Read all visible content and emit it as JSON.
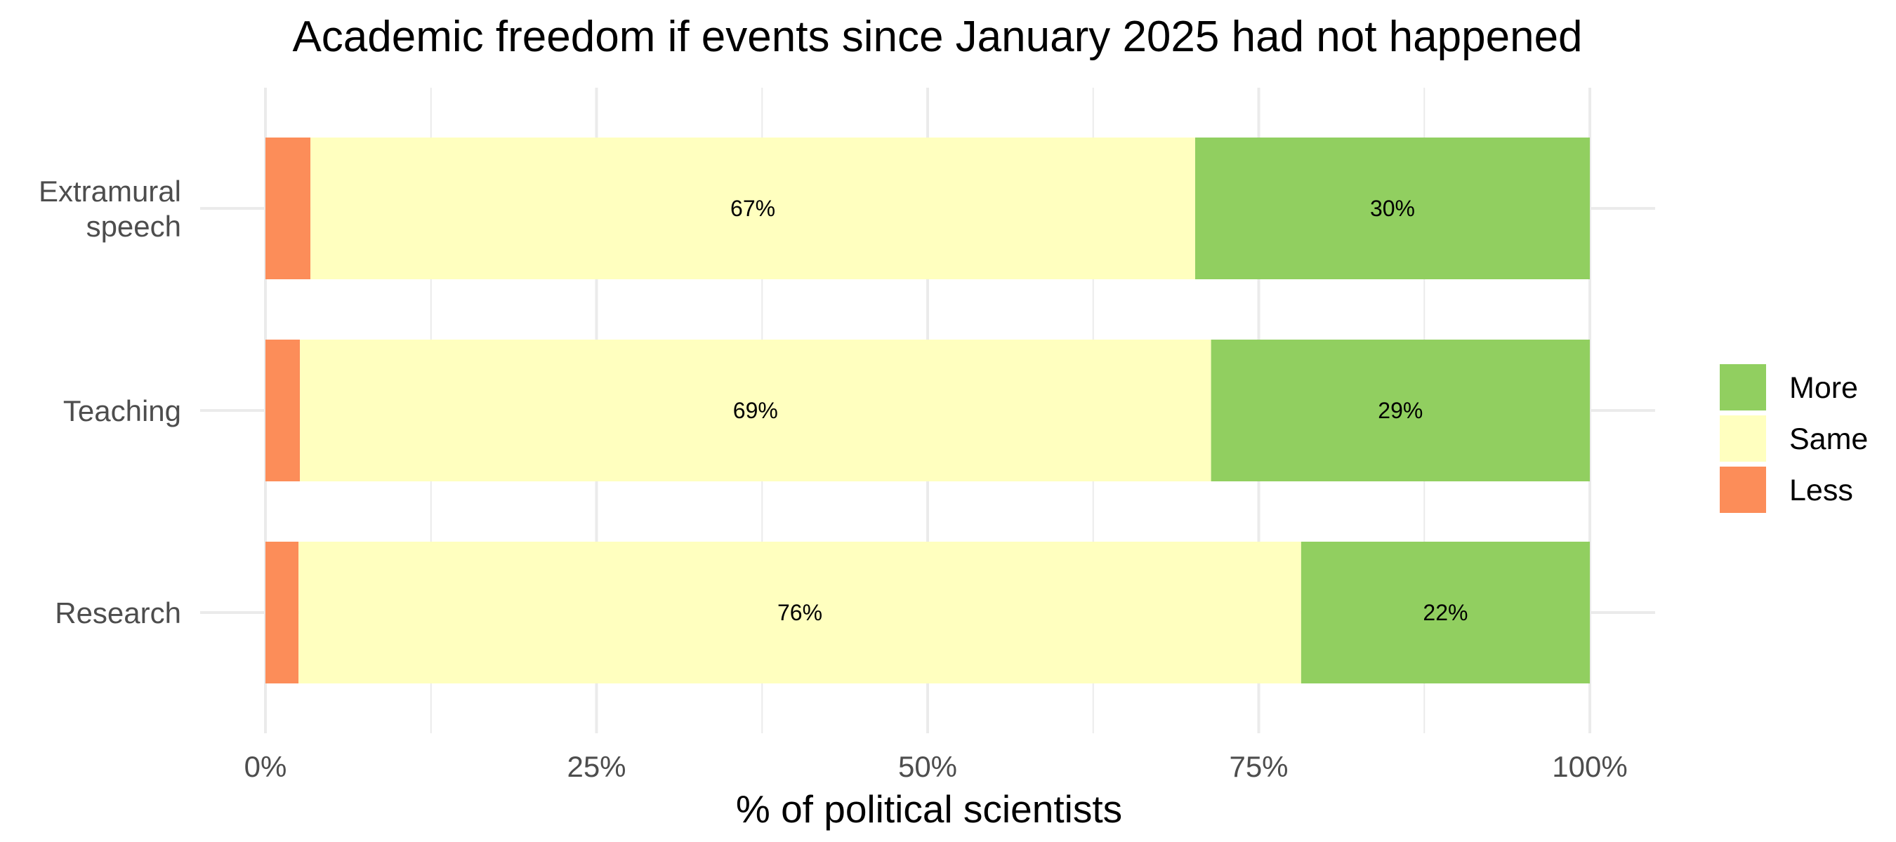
{
  "chart_data": {
    "type": "bar",
    "orientation": "horizontal",
    "stacked": true,
    "title": "Academic freedom if events since January 2025 had not happened",
    "xlabel": "% of political scientists",
    "ylabel": "",
    "xlim": [
      0,
      100
    ],
    "x_ticks": [
      "0%",
      "25%",
      "50%",
      "75%",
      "100%"
    ],
    "grid": true,
    "legend_position": "right",
    "categories": [
      "Extramural speech",
      "Teaching",
      "Research"
    ],
    "category_lines": [
      [
        "Extramural",
        "speech"
      ],
      [
        "Teaching"
      ],
      [
        "Research"
      ]
    ],
    "series": [
      {
        "name": "Less",
        "color": "#fc8d59",
        "values": [
          3.4,
          2.6,
          2.5
        ],
        "labels": [
          "",
          "",
          ""
        ]
      },
      {
        "name": "Same",
        "color": "#ffffbf",
        "values": [
          66.8,
          68.8,
          75.7
        ],
        "labels": [
          "67%",
          "69%",
          "76%"
        ]
      },
      {
        "name": "More",
        "color": "#91cf60",
        "values": [
          29.8,
          28.6,
          21.8
        ],
        "labels": [
          "30%",
          "29%",
          "22%"
        ]
      }
    ],
    "legend_order": [
      "More",
      "Same",
      "Less"
    ]
  }
}
